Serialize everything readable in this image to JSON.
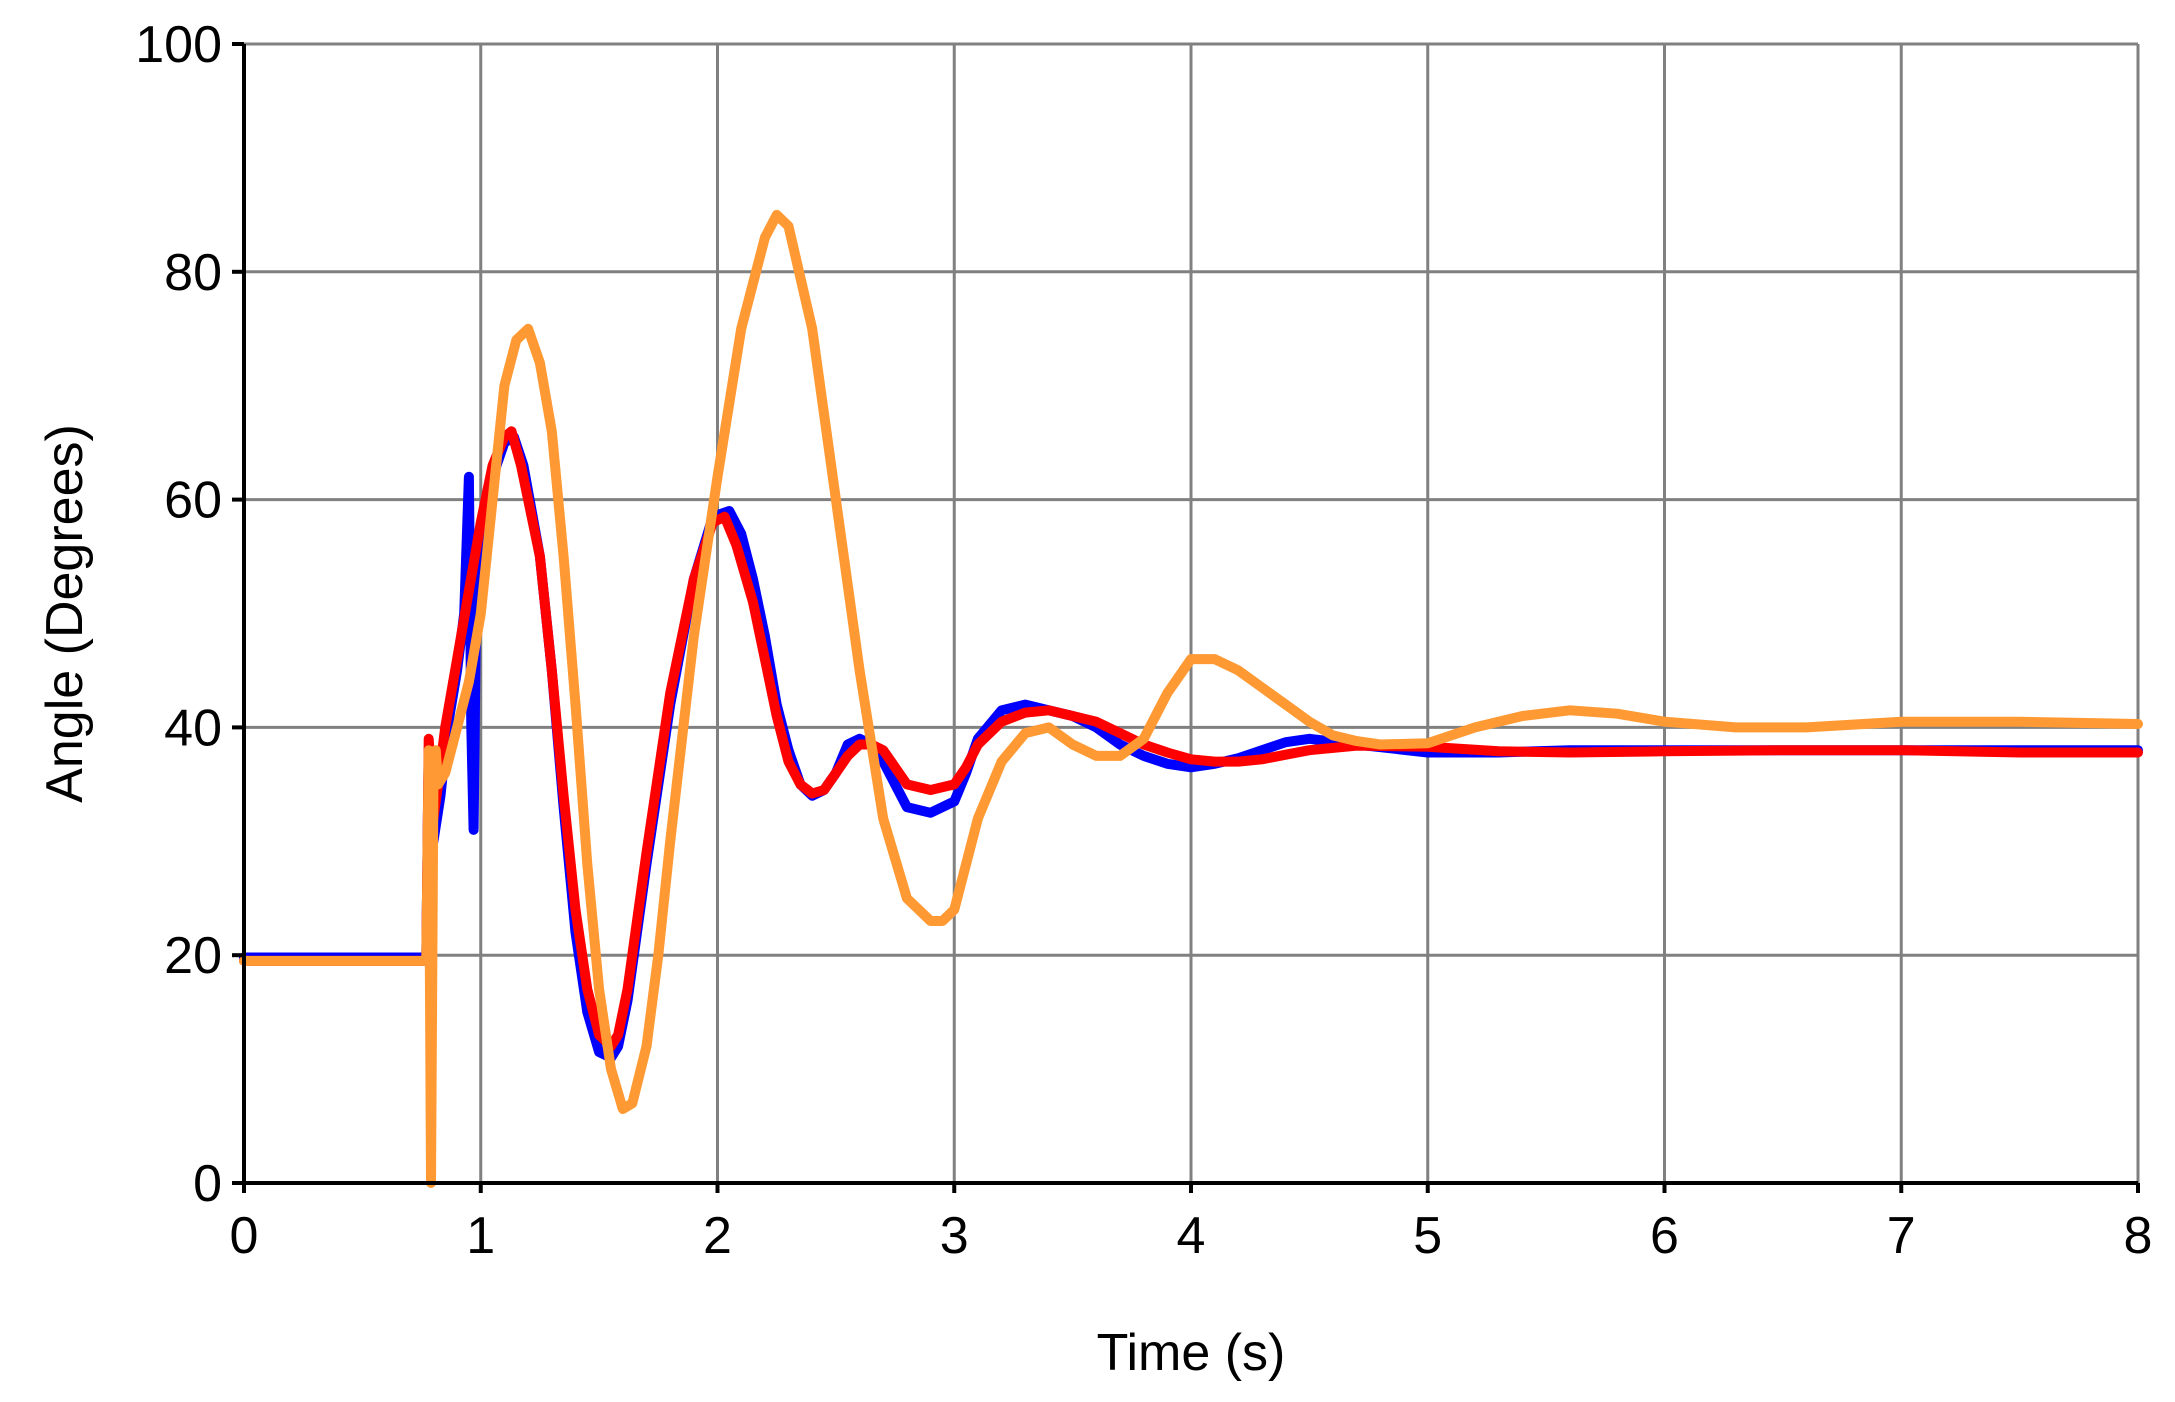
{
  "chart_data": {
    "type": "line",
    "title": "",
    "xlabel": "Time (s)",
    "ylabel": "Angle (Degrees)",
    "xlim": [
      0,
      8
    ],
    "ylim": [
      0,
      100
    ],
    "xticks": [
      0,
      1,
      2,
      3,
      4,
      5,
      6,
      7,
      8
    ],
    "yticks": [
      0,
      20,
      40,
      60,
      80,
      100
    ],
    "grid": true,
    "legend": "none",
    "series": [
      {
        "color": "#0000ff",
        "x": [
          0,
          0.77,
          0.78,
          0.8,
          0.83,
          0.86,
          0.9,
          0.93,
          0.95,
          0.96,
          0.97,
          0.98,
          1.0,
          1.05,
          1.1,
          1.14,
          1.18,
          1.25,
          1.3,
          1.35,
          1.4,
          1.45,
          1.5,
          1.55,
          1.58,
          1.62,
          1.7,
          1.8,
          1.9,
          1.98,
          2.05,
          2.1,
          2.15,
          2.2,
          2.25,
          2.3,
          2.35,
          2.4,
          2.45,
          2.5,
          2.55,
          2.6,
          2.65,
          2.7,
          2.75,
          2.8,
          2.9,
          3.0,
          3.05,
          3.1,
          3.2,
          3.3,
          3.4,
          3.5,
          3.6,
          3.7,
          3.8,
          3.9,
          4.0,
          4.1,
          4.2,
          4.3,
          4.4,
          4.5,
          4.7,
          5.0,
          5.3,
          5.6,
          6.0,
          6.5,
          7.0,
          7.5,
          8.0
        ],
        "y": [
          19.8,
          19.8,
          38,
          30,
          34,
          40,
          45,
          50,
          62,
          40,
          31,
          50,
          55,
          62,
          65,
          65.5,
          63,
          55,
          45,
          33,
          22,
          15,
          11.5,
          11,
          12,
          16,
          28,
          42,
          53,
          58.5,
          59,
          57,
          53,
          48,
          42,
          38,
          35,
          34,
          34.5,
          36,
          38.5,
          39,
          38.5,
          37,
          35,
          33,
          32.5,
          33.5,
          36,
          39,
          41.5,
          42,
          41.5,
          41,
          40,
          38.5,
          37.5,
          36.8,
          36.5,
          36.8,
          37.3,
          38,
          38.7,
          39,
          38.5,
          37.8,
          37.8,
          38,
          38,
          38,
          38,
          38,
          38
        ]
      },
      {
        "color": "#ff0000",
        "x": [
          0,
          0.77,
          0.78,
          0.8,
          0.82,
          0.85,
          0.9,
          0.95,
          1.0,
          1.05,
          1.1,
          1.13,
          1.17,
          1.25,
          1.3,
          1.35,
          1.4,
          1.45,
          1.5,
          1.55,
          1.58,
          1.62,
          1.7,
          1.8,
          1.9,
          1.98,
          2.03,
          2.08,
          2.15,
          2.2,
          2.25,
          2.3,
          2.35,
          2.4,
          2.45,
          2.5,
          2.55,
          2.6,
          2.65,
          2.7,
          2.75,
          2.8,
          2.9,
          3.0,
          3.05,
          3.1,
          3.2,
          3.3,
          3.4,
          3.5,
          3.6,
          3.7,
          3.8,
          3.9,
          4.0,
          4.1,
          4.2,
          4.3,
          4.4,
          4.5,
          4.7,
          5.0,
          5.3,
          5.6,
          6.0,
          6.5,
          7.0,
          7.5,
          8.0
        ],
        "y": [
          19.5,
          19.5,
          39,
          32,
          35,
          40,
          46,
          52,
          58,
          63,
          65.5,
          66,
          63,
          55,
          45,
          34,
          24,
          17,
          13,
          12,
          13,
          17,
          29,
          43,
          53,
          58,
          58.5,
          56,
          51,
          46,
          41,
          37,
          35,
          34.2,
          34.5,
          36,
          37.5,
          38.5,
          38.5,
          38,
          36.5,
          35,
          34.5,
          35,
          36.5,
          38.5,
          40.5,
          41.3,
          41.5,
          41,
          40.5,
          39.5,
          38.5,
          37.8,
          37.2,
          37,
          37,
          37.2,
          37.6,
          38,
          38.4,
          38.3,
          37.9,
          37.8,
          37.9,
          38,
          38,
          37.8,
          37.8
        ]
      },
      {
        "color": "#ff9933",
        "x": [
          0,
          0.77,
          0.78,
          0.79,
          0.8,
          0.81,
          0.82,
          0.85,
          0.9,
          0.95,
          1.0,
          1.05,
          1.1,
          1.15,
          1.2,
          1.25,
          1.3,
          1.35,
          1.4,
          1.45,
          1.5,
          1.55,
          1.6,
          1.64,
          1.7,
          1.75,
          1.8,
          1.9,
          2.0,
          2.1,
          2.2,
          2.25,
          2.3,
          2.4,
          2.5,
          2.6,
          2.7,
          2.8,
          2.9,
          2.95,
          3.0,
          3.1,
          3.2,
          3.3,
          3.4,
          3.5,
          3.6,
          3.7,
          3.8,
          3.9,
          4.0,
          4.1,
          4.2,
          4.3,
          4.4,
          4.5,
          4.6,
          4.7,
          4.8,
          5.0,
          5.2,
          5.4,
          5.6,
          5.8,
          6.0,
          6.3,
          6.6,
          7.0,
          7.5,
          8.0
        ],
        "y": [
          19.5,
          19.5,
          38,
          0,
          35,
          38,
          35,
          36,
          40,
          44,
          50,
          60,
          70,
          74,
          75,
          72,
          66,
          55,
          42,
          28,
          17,
          10,
          6.5,
          7,
          12,
          20,
          30,
          48,
          62,
          75,
          83,
          85,
          84,
          75,
          60,
          45,
          32,
          25,
          23,
          23,
          24,
          32,
          37,
          39.5,
          40,
          38.5,
          37.5,
          37.5,
          39,
          43,
          46,
          46,
          45,
          43.5,
          42,
          40.5,
          39.3,
          38.8,
          38.5,
          38.6,
          40,
          41,
          41.5,
          41.2,
          40.5,
          40,
          40,
          40.5,
          40.5,
          40.3
        ]
      }
    ]
  }
}
